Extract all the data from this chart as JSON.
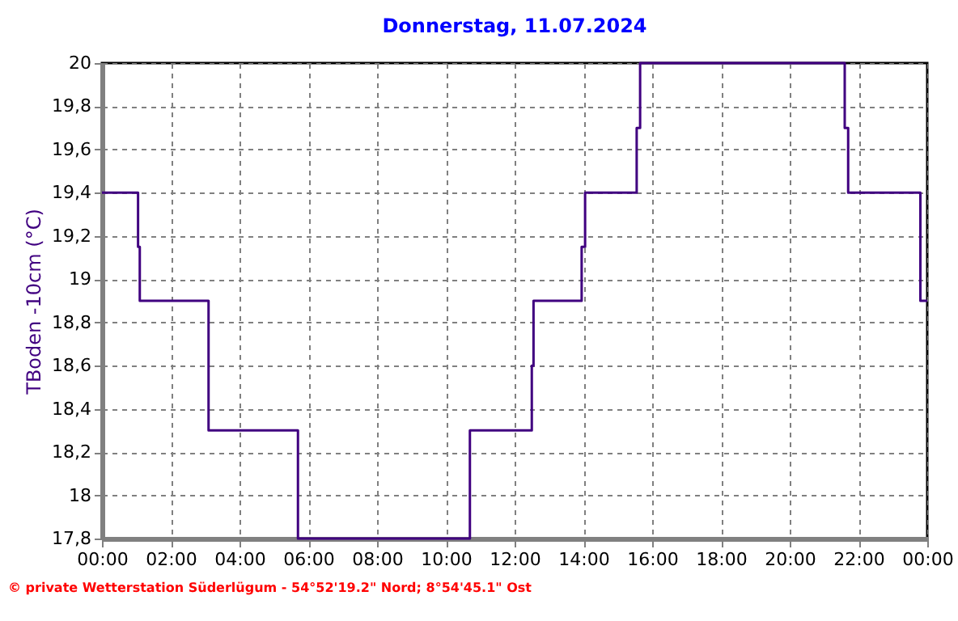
{
  "chart_data": {
    "type": "step",
    "title": "Donnerstag, 11.07.2024",
    "ylabel": "TBoden -10cm (°C)",
    "x": [
      0,
      1.05,
      1.1,
      3.1,
      5.7,
      10.7,
      12.5,
      12.55,
      13.95,
      14.05,
      15.55,
      15.65,
      21.6,
      21.7,
      23.8,
      24
    ],
    "series": [
      {
        "color": "#400080",
        "values": [
          19.4,
          19.15,
          18.9,
          18.3,
          17.8,
          18.3,
          18.6,
          18.9,
          19.15,
          19.4,
          19.7,
          20,
          19.7,
          19.4,
          18.9,
          18.9
        ]
      }
    ],
    "xlim": [
      0,
      24
    ],
    "xticks": [
      {
        "value": 0,
        "label": "00:00"
      },
      {
        "value": 2,
        "label": "02:00"
      },
      {
        "value": 4,
        "label": "04:00"
      },
      {
        "value": 6,
        "label": "06:00"
      },
      {
        "value": 8,
        "label": "08:00"
      },
      {
        "value": 10,
        "label": "10:00"
      },
      {
        "value": 12,
        "label": "12:00"
      },
      {
        "value": 14,
        "label": "14:00"
      },
      {
        "value": 16,
        "label": "16:00"
      },
      {
        "value": 18,
        "label": "18:00"
      },
      {
        "value": 20,
        "label": "20:00"
      },
      {
        "value": 22,
        "label": "22:00"
      },
      {
        "value": 24,
        "label": "00:00"
      }
    ],
    "ylim": [
      17.8,
      20
    ],
    "yticks": [
      {
        "value": 17.8,
        "label": "17,8"
      },
      18,
      {
        "value": 18.2,
        "label": "18,2"
      },
      {
        "value": 18.4,
        "label": "18,4"
      },
      {
        "value": 18.6,
        "label": "18,6"
      },
      {
        "value": 18.8,
        "label": "18,8"
      },
      19,
      {
        "value": 19.2,
        "label": "19,2"
      },
      {
        "value": 19.4,
        "label": "19,4"
      },
      {
        "value": 19.6,
        "label": "19,6"
      },
      {
        "value": 19.8,
        "label": "19,8"
      },
      20
    ],
    "grid": true,
    "line_style": "solid",
    "marker": "none",
    "annotations": [
      "© private Wetterstation Süderlügum - 54°52'19.2\" Nord; 8°54'45.1\" Ost"
    ]
  }
}
